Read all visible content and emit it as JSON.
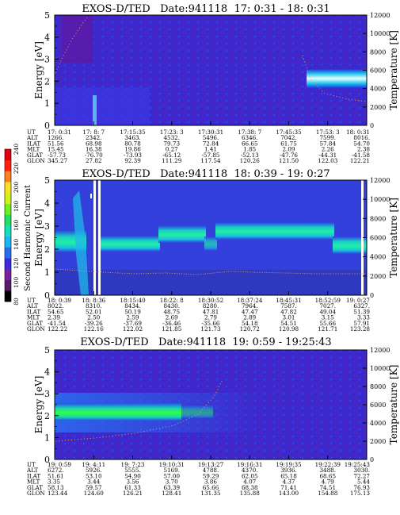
{
  "colorbar": {
    "label": "Second Harmonic Current",
    "ticks": [
      "80",
      "100",
      "120",
      "140",
      "160",
      "180",
      "200",
      "220",
      "240"
    ],
    "colors": [
      "#000000",
      "#5a1a6a",
      "#7a1fa0",
      "#3a2be0",
      "#2a6cf0",
      "#1ab8f0",
      "#10e0c0",
      "#20e060",
      "#70f020",
      "#d0f020",
      "#ffe020",
      "#ff8020",
      "#ff2010",
      "#e00010"
    ]
  },
  "chart_data": [
    {
      "type": "heatmap",
      "title": "EXOS-D/TED   Date:941118  17: 0:31 - 18: 0:31",
      "ylabel": "Energy [eV]",
      "y2label": "Temperature [K]",
      "ylim": [
        0,
        5
      ],
      "y2lim": [
        0,
        12000
      ],
      "yticks": [
        "0",
        "1",
        "2",
        "3",
        "4",
        "5"
      ],
      "y2ticks": [
        "0",
        "2000",
        "4000",
        "6000",
        "8000",
        "10000",
        "12000"
      ],
      "orbit_labels": [
        "UT",
        "ALT",
        "ILAT",
        "MLT",
        "GLAT",
        "GLON"
      ],
      "orbit_table": [
        [
          "17: 0:31",
          "1266.",
          "51.56",
          "15.45",
          "-57.73",
          "345.27"
        ],
        [
          "17: 8: 7",
          "2342.",
          "68.98",
          "16.38",
          "-76.70",
          "27.82"
        ],
        [
          "17:15:35",
          "3463.",
          "80.78",
          "19.86",
          "-73.93",
          "92.39"
        ],
        [
          "17:23: 3",
          "4532.",
          "79.73",
          "0.27",
          "-65.12",
          "111.29"
        ],
        [
          "17:30:31",
          "5496.",
          "72.84",
          "1.41",
          "-57.85",
          "117.54"
        ],
        [
          "17:38: 7",
          "6346.",
          "66.65",
          "1.85",
          "-52.13",
          "120.26"
        ],
        [
          "17:45:35",
          "7042.",
          "61.75",
          "2.09",
          "-47.76",
          "121.50"
        ],
        [
          "17:53: 3",
          "7599.",
          "57.84",
          "2.26",
          "-44.31",
          "122.03"
        ],
        [
          "18: 0:31",
          "8016.",
          "54.70",
          "2.38",
          "-41.58",
          "122.21"
        ]
      ]
    },
    {
      "type": "heatmap",
      "title": "EXOS-D/TED   Date:941118  18: 0:39 - 19: 0:27",
      "ylabel": "Energy [eV]",
      "y2label": "Temperature [K]",
      "ylim": [
        0,
        5
      ],
      "y2lim": [
        0,
        12000
      ],
      "yticks": [
        "0",
        "1",
        "2",
        "3",
        "4",
        "5"
      ],
      "y2ticks": [
        "0",
        "2000",
        "4000",
        "6000",
        "8000",
        "10000",
        "12000"
      ],
      "orbit_labels": [
        "UT",
        "ALT",
        "ILAT",
        "MLT",
        "GLAT",
        "GLON"
      ],
      "orbit_table": [
        [
          "18: 0:39",
          "8022.",
          "54.65",
          "2.39",
          "-41.54",
          "122.22"
        ],
        [
          "18: 8:36",
          "8310.",
          "52.01",
          "2.50",
          "-39.26",
          "122.16"
        ],
        [
          "18:15:40",
          "8434.",
          "50.19",
          "2.59",
          "-37.69",
          "122.02"
        ],
        [
          "18:22: 8",
          "8430.",
          "48.75",
          "2.69",
          "-36.46",
          "121.85"
        ],
        [
          "18:30:52",
          "8280.",
          "47.81",
          "2.79",
          "-35.66",
          "121.73"
        ],
        [
          "18:37:24",
          "7964.",
          "47.47",
          "2.89",
          "54.18",
          "120.72"
        ],
        [
          "18:45:31",
          "7587.",
          "47.82",
          "3.01",
          "54.51",
          "120.98"
        ],
        [
          "18:52:59",
          "7027.",
          "49.04",
          "3.15",
          "55.66",
          "121.71"
        ],
        [
          "19: 0:27",
          "6327.",
          "51.39",
          "3.33",
          "57.91",
          "123.28"
        ]
      ]
    },
    {
      "type": "heatmap",
      "title": "EXOS-D/TED   Date:941118  19: 0:59 - 19:25:43",
      "ylabel": "Energy [eV]",
      "y2label": "Temperature [K]",
      "ylim": [
        0,
        5
      ],
      "y2lim": [
        0,
        12000
      ],
      "yticks": [
        "0",
        "1",
        "2",
        "3",
        "4",
        "5"
      ],
      "y2ticks": [
        "0",
        "2000",
        "4000",
        "6000",
        "8000",
        "10000",
        "12000"
      ],
      "orbit_labels": [
        "UT",
        "ALT",
        "ILAT",
        "MLT",
        "GLAT",
        "GLON"
      ],
      "orbit_table": [
        [
          "19: 0:59",
          "6272.",
          "51.61",
          "3.35",
          "58.13",
          "123.44"
        ],
        [
          "19: 4:11",
          "5926.",
          "53.10",
          "3.44",
          "59.57",
          "124.60"
        ],
        [
          "19: 7:23",
          "5555.",
          "54.90",
          "3.56",
          "61.33",
          "126.21"
        ],
        [
          "19:10:31",
          "5169.",
          "57.00",
          "3.70",
          "63.39",
          "128.41"
        ],
        [
          "19:13:27",
          "4788.",
          "59.29",
          "3.86",
          "65.66",
          "131.35"
        ],
        [
          "19:16:31",
          "4370.",
          "62.05",
          "4.07",
          "68.38",
          "135.88"
        ],
        [
          "19:19:35",
          "3936.",
          "65.18",
          "4.37",
          "71.41",
          "143.00"
        ],
        [
          "19:22:39",
          "3488.",
          "68.65",
          "4.79",
          "74.51",
          "154.88"
        ],
        [
          "19:25:43",
          "3030.",
          "72.27",
          "5.44",
          "76.93",
          "175.13"
        ]
      ]
    }
  ]
}
